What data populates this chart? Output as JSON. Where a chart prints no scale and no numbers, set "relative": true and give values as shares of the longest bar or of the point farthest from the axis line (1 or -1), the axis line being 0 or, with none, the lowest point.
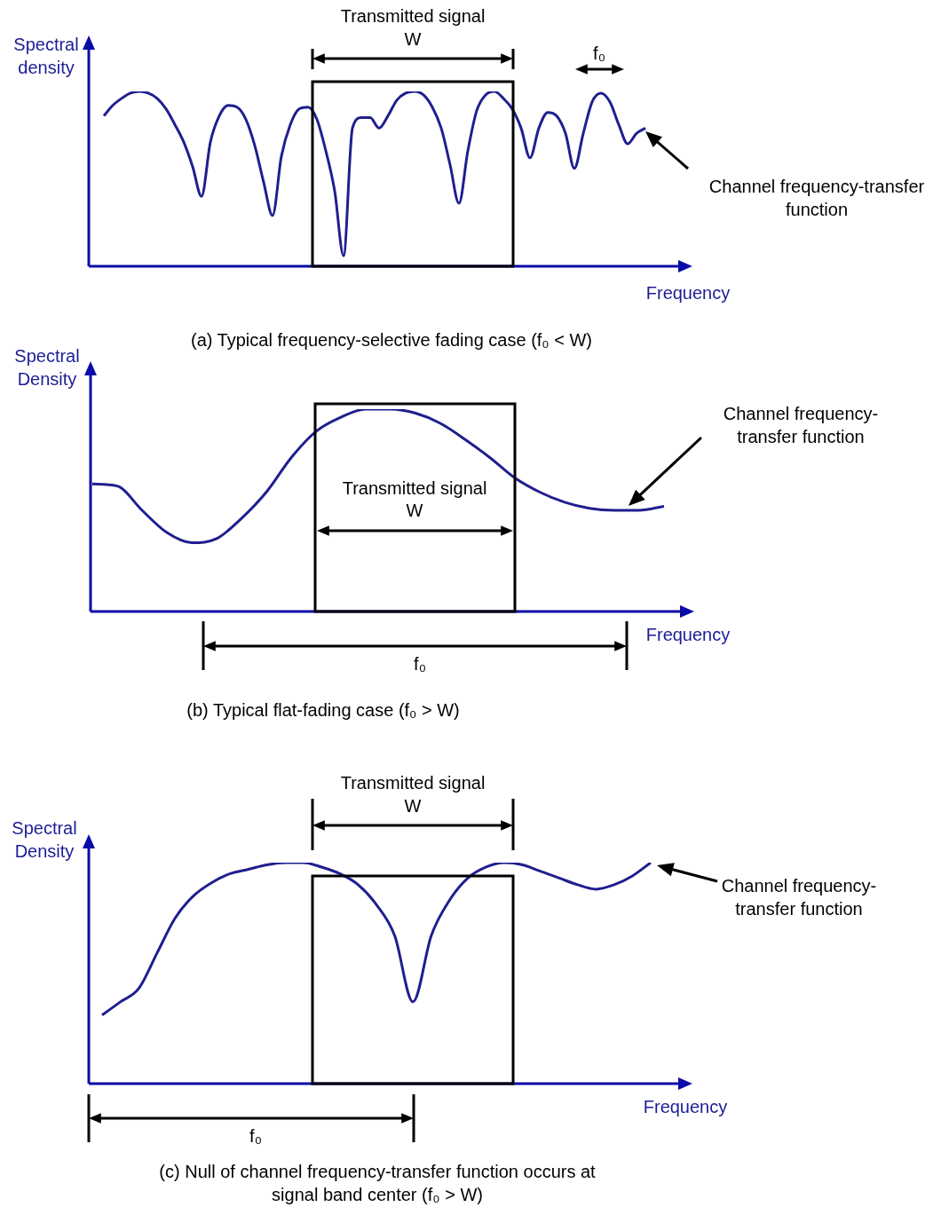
{
  "chart_data": [
    {
      "type": "line",
      "title": "(a) Typical frequency-selective fading case (f₀ < W)",
      "xlabel": "Frequency",
      "ylabel": "Spectral density",
      "relative": true,
      "legend": false,
      "marker": "none",
      "annotations": [
        "Transmitted signal",
        "W",
        "f₀",
        "Channel frequency-transfer function"
      ],
      "categories": [
        null,
        null,
        null,
        null,
        null,
        null,
        null,
        null,
        null,
        null,
        null,
        null,
        null,
        null,
        null,
        null,
        null,
        null,
        null,
        null,
        null,
        null,
        null,
        null,
        null,
        null,
        null,
        null,
        null,
        null,
        null,
        null,
        null,
        null,
        null,
        null,
        null,
        null,
        null,
        null,
        null,
        null,
        null,
        null,
        null,
        null,
        null,
        null,
        null,
        null,
        null,
        null,
        null,
        null,
        null,
        null,
        null,
        null,
        null,
        null,
        null,
        null
      ],
      "series": [
        {
          "color": "#1f1f8f",
          "values": [
            0.86,
            0.92,
            0.96,
            0.99,
            1,
            0.99,
            0.96,
            0.9,
            0.81,
            0.71,
            0.57,
            0.4,
            0.71,
            0.86,
            0.92,
            0.91,
            0.84,
            0.69,
            0.48,
            0.29,
            0.63,
            0.81,
            0.9,
            0.91,
            0.84,
            0.66,
            0.43,
            0.06,
            0.79,
            0.85,
            0.85,
            0.79,
            0.86,
            0.95,
            0.99,
            1,
            0.98,
            0.91,
            0.79,
            0.58,
            0.36,
            0.66,
            0.89,
            0.98,
            1,
            0.96,
            0.9,
            0.79,
            0.62,
            0.79,
            0.88,
            0.86,
            0.76,
            0.56,
            0.76,
            0.94,
            0.99,
            0.94,
            0.81,
            0.7,
            0.76,
            0.79
          ]
        }
      ]
    },
    {
      "type": "line",
      "title": "(b) Typical flat-fading case (f₀ > W)",
      "xlabel": "Frequency",
      "ylabel": "Spectral Density",
      "relative": true,
      "legend": false,
      "marker": "none",
      "annotations": [
        "Transmitted signal",
        "W",
        "f₀",
        "Channel frequency-transfer function"
      ],
      "categories": [
        null,
        null,
        null,
        null,
        null,
        null,
        null,
        null,
        null,
        null,
        null,
        null,
        null,
        null,
        null,
        null,
        null,
        null,
        null,
        null,
        null,
        null,
        null,
        null
      ],
      "series": [
        {
          "color": "#1f1f8f",
          "values": [
            0.63,
            0.62,
            0.5,
            0.39,
            0.34,
            0.36,
            0.46,
            0.59,
            0.76,
            0.89,
            0.96,
            1,
            1,
            0.98,
            0.93,
            0.85,
            0.76,
            0.66,
            0.59,
            0.54,
            0.51,
            0.5,
            0.5,
            0.52
          ]
        }
      ]
    },
    {
      "type": "line",
      "title": "(c) Null of channel frequency-transfer function occurs at signal band center (f₀ > W)",
      "xlabel": "Frequency",
      "ylabel": "Spectral Density",
      "relative": true,
      "legend": false,
      "marker": "none",
      "annotations": [
        "Transmitted signal",
        "W",
        "f₀",
        "Channel frequency-transfer function"
      ],
      "categories": [
        null,
        null,
        null,
        null,
        null,
        null,
        null,
        null,
        null,
        null,
        null,
        null,
        null,
        null,
        null,
        null,
        null,
        null,
        null,
        null,
        null,
        null,
        null,
        null,
        null,
        null,
        null,
        null,
        null,
        null,
        null
      ],
      "series": [
        {
          "color": "#1f1f8f",
          "values": [
            0.31,
            0.37,
            0.43,
            0.59,
            0.75,
            0.85,
            0.91,
            0.95,
            0.97,
            0.99,
            1,
            1,
            0.98,
            0.95,
            0.9,
            0.81,
            0.67,
            0.37,
            0.67,
            0.83,
            0.93,
            0.98,
            1,
            0.99,
            0.96,
            0.93,
            0.9,
            0.88,
            0.9,
            0.94,
            1
          ]
        }
      ]
    }
  ]
}
